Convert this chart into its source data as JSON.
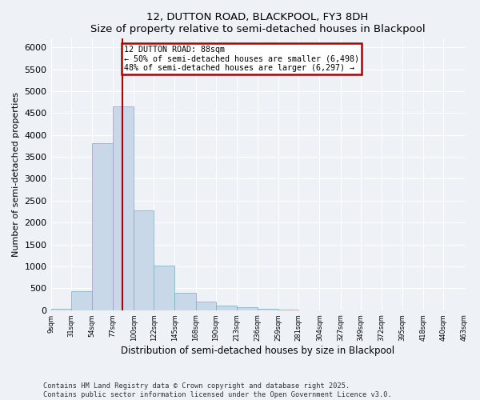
{
  "title": "12, DUTTON ROAD, BLACKPOOL, FY3 8DH",
  "subtitle": "Size of property relative to semi-detached houses in Blackpool",
  "xlabel": "Distribution of semi-detached houses by size in Blackpool",
  "ylabel": "Number of semi-detached properties",
  "bar_edges": [
    9,
    31,
    54,
    77,
    100,
    122,
    145,
    168,
    190,
    213,
    236,
    259,
    281,
    304,
    327,
    349,
    372,
    395,
    418,
    440,
    463
  ],
  "bar_heights": [
    30,
    430,
    3820,
    4650,
    2280,
    1010,
    390,
    195,
    100,
    65,
    35,
    10,
    0,
    0,
    0,
    0,
    0,
    0,
    0,
    0
  ],
  "bar_color": "#c8d8e8",
  "bar_edgecolor": "#7aaac8",
  "property_line_x": 88,
  "property_line_color": "#aa0000",
  "annotation_text": "12 DUTTON ROAD: 88sqm\n← 50% of semi-detached houses are smaller (6,498)\n48% of semi-detached houses are larger (6,297) →",
  "annotation_box_color": "#ffffff",
  "annotation_box_edge": "#aa0000",
  "ylim": [
    0,
    6200
  ],
  "yticks": [
    0,
    500,
    1000,
    1500,
    2000,
    2500,
    3000,
    3500,
    4000,
    4500,
    5000,
    5500,
    6000
  ],
  "tick_labels": [
    "9sqm",
    "31sqm",
    "54sqm",
    "77sqm",
    "100sqm",
    "122sqm",
    "145sqm",
    "168sqm",
    "190sqm",
    "213sqm",
    "236sqm",
    "259sqm",
    "281sqm",
    "304sqm",
    "327sqm",
    "349sqm",
    "372sqm",
    "395sqm",
    "418sqm",
    "440sqm",
    "463sqm"
  ],
  "footer": "Contains HM Land Registry data © Crown copyright and database right 2025.\nContains public sector information licensed under the Open Government Licence v3.0.",
  "bg_color": "#eef2f7",
  "grid_color": "#ffffff"
}
